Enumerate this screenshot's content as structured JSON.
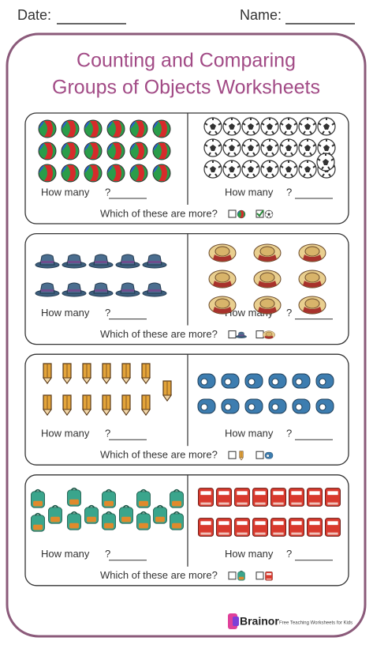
{
  "header": {
    "date_label": "Date:",
    "name_label": "Name:"
  },
  "title": [
    "Counting and Comparing",
    "Groups of Objects Worksheets"
  ],
  "sections": [
    {
      "left": {
        "question": "How many",
        "mark": "?"
      },
      "right": {
        "question": "How many",
        "mark": "?"
      },
      "compare": "Which of these are more?"
    },
    {
      "left": {
        "question": "How many",
        "mark": "?"
      },
      "right": {
        "question": "How many",
        "mark": "?"
      },
      "compare": "Which of these are more?"
    },
    {
      "left": {
        "question": "How many",
        "mark": "?"
      },
      "right": {
        "question": "How many",
        "mark": "?"
      },
      "compare": "Which of these are more?"
    },
    {
      "left": {
        "question": "How many",
        "mark": "?"
      },
      "right": {
        "question": "How many",
        "mark": "?"
      },
      "compare": "Which of these are more?"
    }
  ],
  "footer": {
    "brand": "Brainor",
    "tagline": "Free Teaching Worksheets for Kids"
  }
}
